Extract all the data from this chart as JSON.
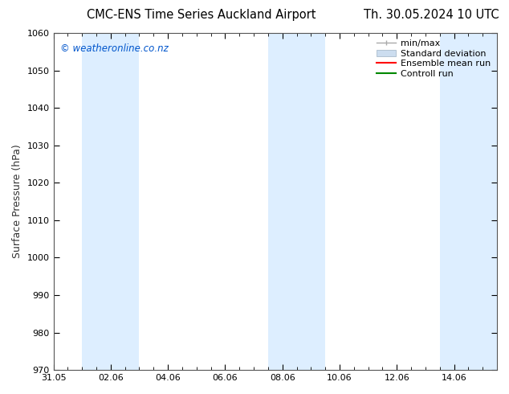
{
  "title_left": "CMC-ENS Time Series Auckland Airport",
  "title_right": "Th. 30.05.2024 10 UTC",
  "ylabel": "Surface Pressure (hPa)",
  "watermark": "© weatheronline.co.nz",
  "watermark_color": "#0055cc",
  "ylim": [
    970,
    1060
  ],
  "yticks": [
    970,
    980,
    990,
    1000,
    1010,
    1020,
    1030,
    1040,
    1050,
    1060
  ],
  "xtick_labels": [
    "31.05",
    "02.06",
    "04.06",
    "06.06",
    "08.06",
    "10.06",
    "12.06",
    "14.06"
  ],
  "xtick_positions": [
    0,
    2,
    4,
    6,
    8,
    10,
    12,
    14
  ],
  "xmin": 0,
  "xmax": 15.5,
  "background_color": "#ffffff",
  "plot_bg_color": "#ffffff",
  "shaded_regions": [
    {
      "xstart": 1.0,
      "xend": 3.0,
      "color": "#ddeeff"
    },
    {
      "xstart": 7.5,
      "xend": 9.5,
      "color": "#ddeeff"
    },
    {
      "xstart": 13.5,
      "xend": 15.5,
      "color": "#ddeeff"
    }
  ],
  "legend_minmax_color": "#aaaaaa",
  "legend_stddev_facecolor": "#ccddef",
  "legend_stddev_edgecolor": "#aabbcc",
  "legend_ensemble_color": "#ff0000",
  "legend_control_color": "#008800",
  "title_fontsize": 10.5,
  "axis_label_fontsize": 9,
  "tick_fontsize": 8,
  "watermark_fontsize": 8.5,
  "legend_fontsize": 8
}
